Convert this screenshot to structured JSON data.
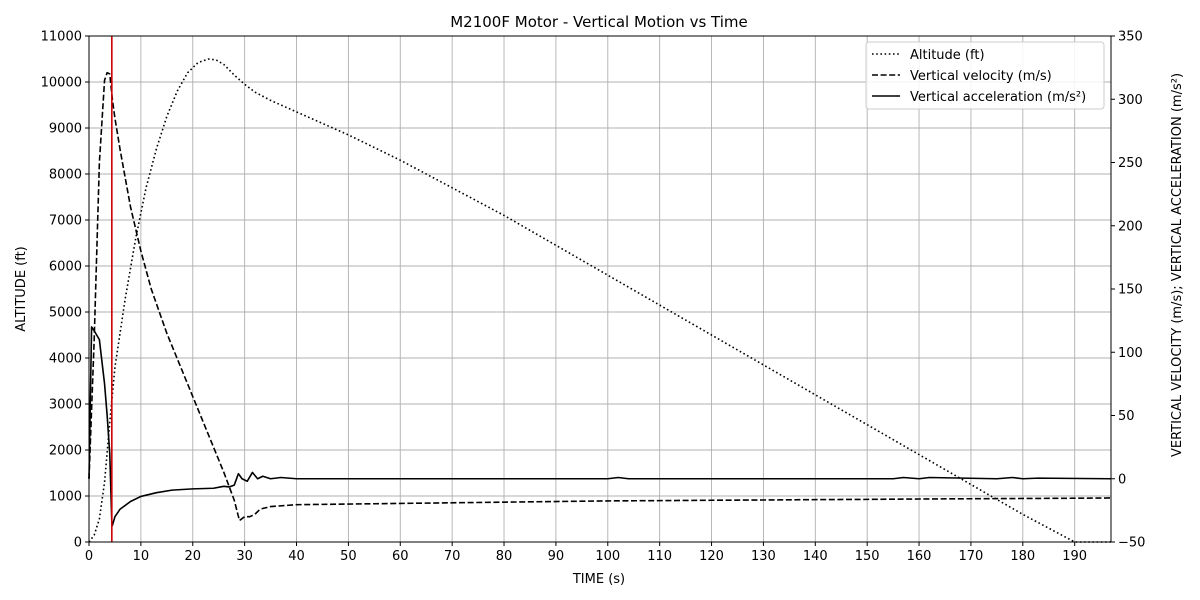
{
  "chart_data": {
    "type": "line",
    "title": "M2100F Motor - Vertical Motion vs Time",
    "xlabel": "TIME (s)",
    "ylabel_left": "ALTITUDE (ft)",
    "ylabel_right": "VERTICAL VELOCITY (m/s); VERTICAL ACCELERATION (m/s²)",
    "xlim": [
      0,
      197
    ],
    "ylim_left": [
      0,
      11000
    ],
    "ylim_right": [
      -50,
      350
    ],
    "x_ticks": [
      "0",
      "10",
      "20",
      "30",
      "40",
      "50",
      "60",
      "70",
      "80",
      "90",
      "100",
      "110",
      "120",
      "130",
      "140",
      "150",
      "160",
      "170",
      "180",
      "190"
    ],
    "y_left_ticks": [
      "0",
      "1000",
      "2000",
      "3000",
      "4000",
      "5000",
      "6000",
      "7000",
      "8000",
      "9000",
      "10000",
      "11000"
    ],
    "y_right_ticks": [
      "−50",
      "0",
      "50",
      "100",
      "150",
      "200",
      "250",
      "300",
      "350"
    ],
    "grid": true,
    "legend_position": "top-right",
    "vertical_marker": {
      "x": 4.4,
      "color": "#cc0000"
    },
    "series": [
      {
        "name": "Altitude (ft)",
        "axis": "left",
        "style": "dotted",
        "x": [
          0,
          1,
          2,
          3,
          4,
          5,
          7,
          9,
          11,
          13,
          15,
          17,
          19,
          21,
          23,
          24.5,
          26,
          28,
          30,
          32,
          35,
          40,
          50,
          60,
          70,
          80,
          90,
          100,
          110,
          120,
          130,
          140,
          150,
          160,
          170,
          180,
          190,
          197
        ],
        "values": [
          0,
          150,
          500,
          1300,
          2600,
          3800,
          5300,
          6600,
          7700,
          8550,
          9250,
          9800,
          10200,
          10420,
          10500,
          10480,
          10380,
          10150,
          9950,
          9780,
          9600,
          9350,
          8850,
          8300,
          7700,
          7100,
          6450,
          5800,
          5150,
          4500,
          3850,
          3200,
          2550,
          1900,
          1250,
          600,
          0,
          0
        ]
      },
      {
        "name": "Vertical velocity (m/s)",
        "axis": "right",
        "style": "dashed",
        "x": [
          0,
          1,
          2,
          3,
          3.5,
          4,
          4.5,
          5,
          6,
          8,
          10,
          12,
          15,
          18,
          20,
          22,
          24,
          26,
          28,
          29,
          30,
          31,
          32,
          33,
          35,
          40,
          50,
          60,
          70,
          80,
          90,
          100,
          110,
          120,
          130,
          140,
          150,
          160,
          170,
          180,
          190,
          197
        ],
        "values": [
          0,
          110,
          250,
          315,
          321,
          320,
          300,
          285,
          260,
          215,
          180,
          150,
          115,
          85,
          65,
          45,
          25,
          5,
          -17,
          -33,
          -30,
          -30,
          -28,
          -24,
          -22,
          -20.5,
          -20,
          -19.5,
          -19,
          -18.5,
          -18,
          -17.5,
          -17.3,
          -17,
          -16.8,
          -16.5,
          -16.3,
          -16,
          -15.8,
          -15.6,
          -15.4,
          -15.2
        ]
      },
      {
        "name": "Vertical acceleration (m/s²)",
        "axis": "right",
        "style": "solid",
        "x": [
          0,
          0.5,
          1,
          2,
          3,
          3.5,
          4,
          4.4,
          4.5,
          5,
          6,
          8,
          10,
          13,
          16,
          20,
          24,
          26,
          27,
          28,
          28.8,
          29.5,
          30.5,
          31.5,
          32.5,
          33.5,
          35,
          37,
          40,
          60,
          80,
          100,
          102,
          104,
          106,
          120,
          140,
          155,
          157,
          160,
          162,
          175,
          178,
          180,
          183,
          197
        ],
        "values": [
          0,
          120,
          117,
          110,
          75,
          50,
          20,
          -35,
          -37,
          -30,
          -24,
          -18,
          -14,
          -11,
          -9,
          -8,
          -7.5,
          -6,
          -6.5,
          -5,
          4,
          0,
          -2,
          5,
          0,
          2,
          0,
          1,
          0,
          0,
          0,
          0,
          1,
          0,
          0,
          0,
          0,
          0,
          1,
          0,
          1,
          0,
          1,
          0,
          0.5,
          0
        ]
      }
    ]
  }
}
